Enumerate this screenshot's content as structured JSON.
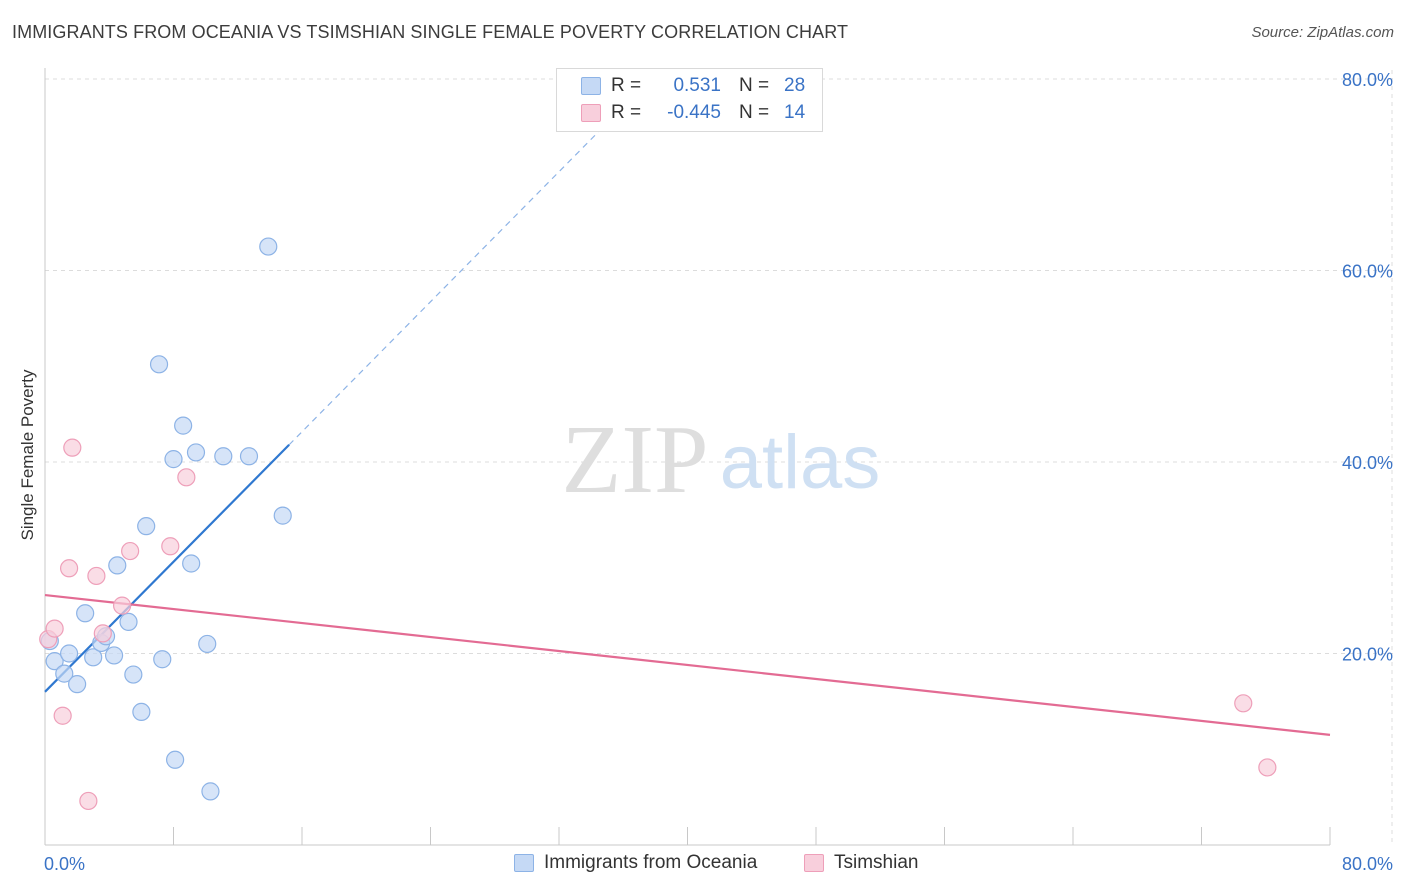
{
  "header": {
    "title": "IMMIGRANTS FROM OCEANIA VS TSIMSHIAN SINGLE FEMALE POVERTY CORRELATION CHART",
    "source": "Source: ZipAtlas.com"
  },
  "legend": {
    "rows": [
      {
        "r_label": "R =",
        "r_value": "0.531",
        "n_label": "N =",
        "n_value": "28"
      },
      {
        "r_label": "R =",
        "r_value": "-0.445",
        "n_label": "N =",
        "n_value": "14"
      }
    ]
  },
  "watermark": {
    "zip": "ZIP",
    "atlas": "atlas"
  },
  "colors": {
    "blue_fill": "#c5d9f5",
    "blue_stroke": "#8db3e6",
    "blue_line": "#2f78d0",
    "pink_fill": "#f8cfdc",
    "pink_stroke": "#ee9fb9",
    "pink_line": "#e36b93",
    "grid": "#dcdcdc",
    "tick_text": "#3a73c6"
  },
  "chart_data": {
    "type": "scatter",
    "title": "IMMIGRANTS FROM OCEANIA VS TSIMSHIAN SINGLE FEMALE POVERTY CORRELATION CHART",
    "xlabel": "",
    "ylabel": "Single Female Poverty",
    "xlim": [
      0,
      80
    ],
    "ylim": [
      0,
      80
    ],
    "x_tick_labels": [
      "0.0%",
      "80.0%"
    ],
    "y_tick_labels": [
      "20.0%",
      "40.0%",
      "60.0%",
      "80.0%"
    ],
    "y_ticks": [
      20,
      40,
      60,
      80
    ],
    "series": [
      {
        "name": "Immigrants from Oceania",
        "color_key": "blue",
        "r": 0.531,
        "n": 28,
        "points": [
          {
            "x": 0.3,
            "y": 21.3
          },
          {
            "x": 0.6,
            "y": 19.2
          },
          {
            "x": 1.2,
            "y": 17.9
          },
          {
            "x": 1.5,
            "y": 20.0
          },
          {
            "x": 2.0,
            "y": 16.8
          },
          {
            "x": 2.5,
            "y": 24.2
          },
          {
            "x": 3.0,
            "y": 19.6
          },
          {
            "x": 3.5,
            "y": 21.1
          },
          {
            "x": 3.8,
            "y": 21.8
          },
          {
            "x": 4.3,
            "y": 19.8
          },
          {
            "x": 4.5,
            "y": 29.2
          },
          {
            "x": 5.2,
            "y": 23.3
          },
          {
            "x": 5.5,
            "y": 17.8
          },
          {
            "x": 6.0,
            "y": 13.9
          },
          {
            "x": 6.3,
            "y": 33.3
          },
          {
            "x": 7.1,
            "y": 50.2
          },
          {
            "x": 7.3,
            "y": 19.4
          },
          {
            "x": 8.0,
            "y": 40.3
          },
          {
            "x": 8.1,
            "y": 8.9
          },
          {
            "x": 8.6,
            "y": 43.8
          },
          {
            "x": 9.1,
            "y": 29.4
          },
          {
            "x": 9.4,
            "y": 41.0
          },
          {
            "x": 10.1,
            "y": 21.0
          },
          {
            "x": 10.3,
            "y": 5.6
          },
          {
            "x": 11.1,
            "y": 40.6
          },
          {
            "x": 12.7,
            "y": 40.6
          },
          {
            "x": 13.9,
            "y": 62.5
          },
          {
            "x": 14.8,
            "y": 34.4
          }
        ],
        "trend": {
          "x0": 0,
          "y0": 16.0,
          "x1": 15.2,
          "y1": 41.8,
          "dash_x1": 38.0,
          "dash_y1": 80.5
        }
      },
      {
        "name": "Tsimshian",
        "color_key": "pink",
        "r": -0.445,
        "n": 14,
        "points": [
          {
            "x": 0.2,
            "y": 21.5
          },
          {
            "x": 0.6,
            "y": 22.6
          },
          {
            "x": 1.1,
            "y": 13.5
          },
          {
            "x": 1.5,
            "y": 28.9
          },
          {
            "x": 1.7,
            "y": 41.5
          },
          {
            "x": 2.7,
            "y": 4.6
          },
          {
            "x": 3.2,
            "y": 28.1
          },
          {
            "x": 3.6,
            "y": 22.1
          },
          {
            "x": 4.8,
            "y": 25.0
          },
          {
            "x": 5.3,
            "y": 30.7
          },
          {
            "x": 7.8,
            "y": 31.2
          },
          {
            "x": 8.8,
            "y": 38.4
          },
          {
            "x": 74.6,
            "y": 14.8
          },
          {
            "x": 76.1,
            "y": 8.1
          }
        ],
        "trend": {
          "x0": 0,
          "y0": 26.1,
          "x1": 80,
          "y1": 11.5
        }
      }
    ]
  },
  "bottom_legend": {
    "items": [
      "Immigrants from Oceania",
      "Tsimshian"
    ]
  }
}
